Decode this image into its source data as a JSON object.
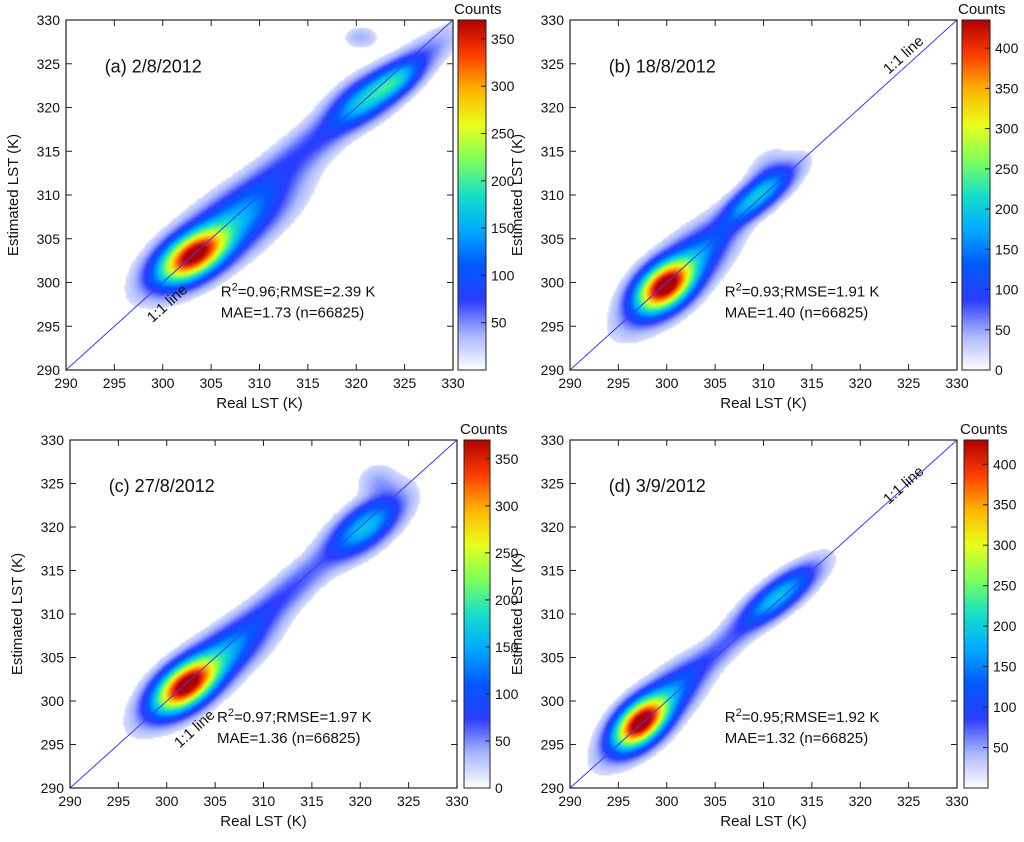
{
  "chart_data": [
    {
      "type": "heatmap",
      "panel_label": "(a) 2/8/2012",
      "xlabel": "Real LST (K)",
      "ylabel": "Estimated LST (K)",
      "xlim": [
        290,
        330
      ],
      "ylim": [
        290,
        330
      ],
      "xticks": [
        290,
        295,
        300,
        305,
        310,
        315,
        320,
        325,
        330
      ],
      "yticks": [
        290,
        295,
        300,
        305,
        310,
        315,
        320,
        325,
        330
      ],
      "reference_line": "1:1 line",
      "stats_line1": "R²=0.96;RMSE=2.39 K",
      "stats_line2": "MAE=1.73 (n=66825)",
      "colorbar": {
        "title": "Counts",
        "max": 370,
        "ticks": [
          50,
          100,
          150,
          200,
          250,
          300,
          350
        ]
      },
      "density_clusters": [
        {
          "x": 303.2,
          "y": 303.1,
          "sx": 2.0,
          "sy": 1.7,
          "rho": 0.55,
          "w": 1.0
        },
        {
          "x": 306.5,
          "y": 306.0,
          "sx": 3.4,
          "sy": 3.0,
          "rho": 0.75,
          "w": 0.2
        },
        {
          "x": 312.0,
          "y": 312.5,
          "sx": 5.5,
          "sy": 5.3,
          "rho": 0.95,
          "w": 0.05
        },
        {
          "x": 321.0,
          "y": 321.0,
          "sx": 2.0,
          "sy": 1.7,
          "rho": 0.6,
          "w": 0.16
        },
        {
          "x": 324.0,
          "y": 323.0,
          "sx": 1.5,
          "sy": 1.3,
          "rho": 0.6,
          "w": 0.16
        },
        {
          "x": 322.5,
          "y": 322.0,
          "sx": 3.5,
          "sy": 3.1,
          "rho": 0.92,
          "w": 0.1
        },
        {
          "x": 320.5,
          "y": 328.0,
          "sx": 1.0,
          "sy": 0.7,
          "rho": 0.0,
          "w": 0.015
        }
      ],
      "colors": {
        "cmap": [
          "#ffffff",
          "#a8b6ff",
          "#2a3cff",
          "#0059ff",
          "#00aaff",
          "#16e0c8",
          "#7fff5a",
          "#e8ff1a",
          "#ffb400",
          "#ff3c00",
          "#b00000"
        ],
        "line": "#3a3aff"
      }
    },
    {
      "type": "heatmap",
      "panel_label": "(b) 18/8/2012",
      "xlabel": "Real LST (K)",
      "ylabel": "Estimated LST (K)",
      "xlim": [
        290,
        330
      ],
      "ylim": [
        290,
        330
      ],
      "xticks": [
        290,
        295,
        300,
        305,
        310,
        315,
        320,
        325,
        330
      ],
      "yticks": [
        290,
        295,
        300,
        305,
        310,
        315,
        320,
        325,
        330
      ],
      "reference_line": "1:1 line",
      "stats_line1": "R²=0.93;RMSE=1.91 K",
      "stats_line2": "MAE=1.40 (n=66825)",
      "colorbar": {
        "title": "Counts",
        "max": 435,
        "ticks": [
          0,
          50,
          100,
          150,
          200,
          250,
          300,
          350,
          400
        ]
      },
      "density_clusters": [
        {
          "x": 299.8,
          "y": 299.6,
          "sx": 1.6,
          "sy": 1.6,
          "rho": 0.45,
          "w": 1.0
        },
        {
          "x": 301.3,
          "y": 301.0,
          "sx": 2.6,
          "sy": 2.8,
          "rho": 0.75,
          "w": 0.22
        },
        {
          "x": 309.3,
          "y": 309.8,
          "sx": 2.0,
          "sy": 1.8,
          "rho": 0.8,
          "w": 0.22
        },
        {
          "x": 305.0,
          "y": 305.0,
          "sx": 3.5,
          "sy": 3.5,
          "rho": 0.95,
          "w": 0.04
        },
        {
          "x": 310.5,
          "y": 312.0,
          "sx": 1.2,
          "sy": 1.6,
          "rho": 0.3,
          "w": 0.03
        }
      ],
      "colors": {
        "cmap": [
          "#ffffff",
          "#a8b6ff",
          "#2a3cff",
          "#0059ff",
          "#00aaff",
          "#16e0c8",
          "#7fff5a",
          "#e8ff1a",
          "#ffb400",
          "#ff3c00",
          "#b00000"
        ],
        "line": "#3a3aff"
      }
    },
    {
      "type": "heatmap",
      "panel_label": "(c) 27/8/2012",
      "xlabel": "Real LST (K)",
      "ylabel": "Estimated LST (K)",
      "xlim": [
        290,
        330
      ],
      "ylim": [
        290,
        330
      ],
      "xticks": [
        290,
        295,
        300,
        305,
        310,
        315,
        320,
        325,
        330
      ],
      "yticks": [
        290,
        295,
        300,
        305,
        310,
        315,
        320,
        325,
        330
      ],
      "reference_line": "1:1 line",
      "stats_line1": "R²=0.97;RMSE=1.97 K",
      "stats_line2": "MAE=1.36 (n=66825)",
      "colorbar": {
        "title": "Counts",
        "max": 370,
        "ticks": [
          0,
          50,
          100,
          150,
          200,
          250,
          300,
          350
        ]
      },
      "density_clusters": [
        {
          "x": 302.0,
          "y": 301.8,
          "sx": 1.8,
          "sy": 1.7,
          "rho": 0.55,
          "w": 1.0
        },
        {
          "x": 304.5,
          "y": 304.0,
          "sx": 3.0,
          "sy": 2.8,
          "rho": 0.8,
          "w": 0.22
        },
        {
          "x": 311.0,
          "y": 311.0,
          "sx": 5.0,
          "sy": 5.0,
          "rho": 0.96,
          "w": 0.05
        },
        {
          "x": 320.5,
          "y": 320.0,
          "sx": 2.0,
          "sy": 1.9,
          "rho": 0.65,
          "w": 0.22
        },
        {
          "x": 322.0,
          "y": 325.0,
          "sx": 1.2,
          "sy": 1.2,
          "rho": 0.0,
          "w": 0.02
        }
      ],
      "colors": {
        "cmap": [
          "#ffffff",
          "#a8b6ff",
          "#2a3cff",
          "#0059ff",
          "#00aaff",
          "#16e0c8",
          "#7fff5a",
          "#e8ff1a",
          "#ffb400",
          "#ff3c00",
          "#b00000"
        ],
        "line": "#3a3aff"
      }
    },
    {
      "type": "heatmap",
      "panel_label": "(d) 3/9/2012",
      "xlabel": "Real LST (K)",
      "ylabel": "Estimated LST (K)",
      "xlim": [
        290,
        330
      ],
      "ylim": [
        290,
        330
      ],
      "xticks": [
        290,
        295,
        300,
        305,
        310,
        315,
        320,
        325,
        330
      ],
      "yticks": [
        290,
        295,
        300,
        305,
        310,
        315,
        320,
        325,
        330
      ],
      "reference_line": "1:1 line",
      "stats_line1": "R²=0.95;RMSE=1.92 K",
      "stats_line2": "MAE=1.32 (n=66825)",
      "colorbar": {
        "title": "Counts",
        "max": 430,
        "ticks": [
          50,
          100,
          150,
          200,
          250,
          300,
          350,
          400
        ]
      },
      "density_clusters": [
        {
          "x": 297.3,
          "y": 297.5,
          "sx": 1.5,
          "sy": 1.6,
          "rho": 0.5,
          "w": 1.0
        },
        {
          "x": 298.8,
          "y": 299.0,
          "sx": 2.4,
          "sy": 2.6,
          "rho": 0.78,
          "w": 0.22
        },
        {
          "x": 311.5,
          "y": 312.0,
          "sx": 2.1,
          "sy": 1.9,
          "rho": 0.8,
          "w": 0.22
        },
        {
          "x": 304.5,
          "y": 305.0,
          "sx": 3.8,
          "sy": 3.8,
          "rho": 0.95,
          "w": 0.04
        }
      ],
      "colors": {
        "cmap": [
          "#ffffff",
          "#a8b6ff",
          "#2a3cff",
          "#0059ff",
          "#00aaff",
          "#16e0c8",
          "#7fff5a",
          "#e8ff1a",
          "#ffb400",
          "#ff3c00",
          "#b00000"
        ],
        "line": "#3a3aff"
      }
    }
  ]
}
